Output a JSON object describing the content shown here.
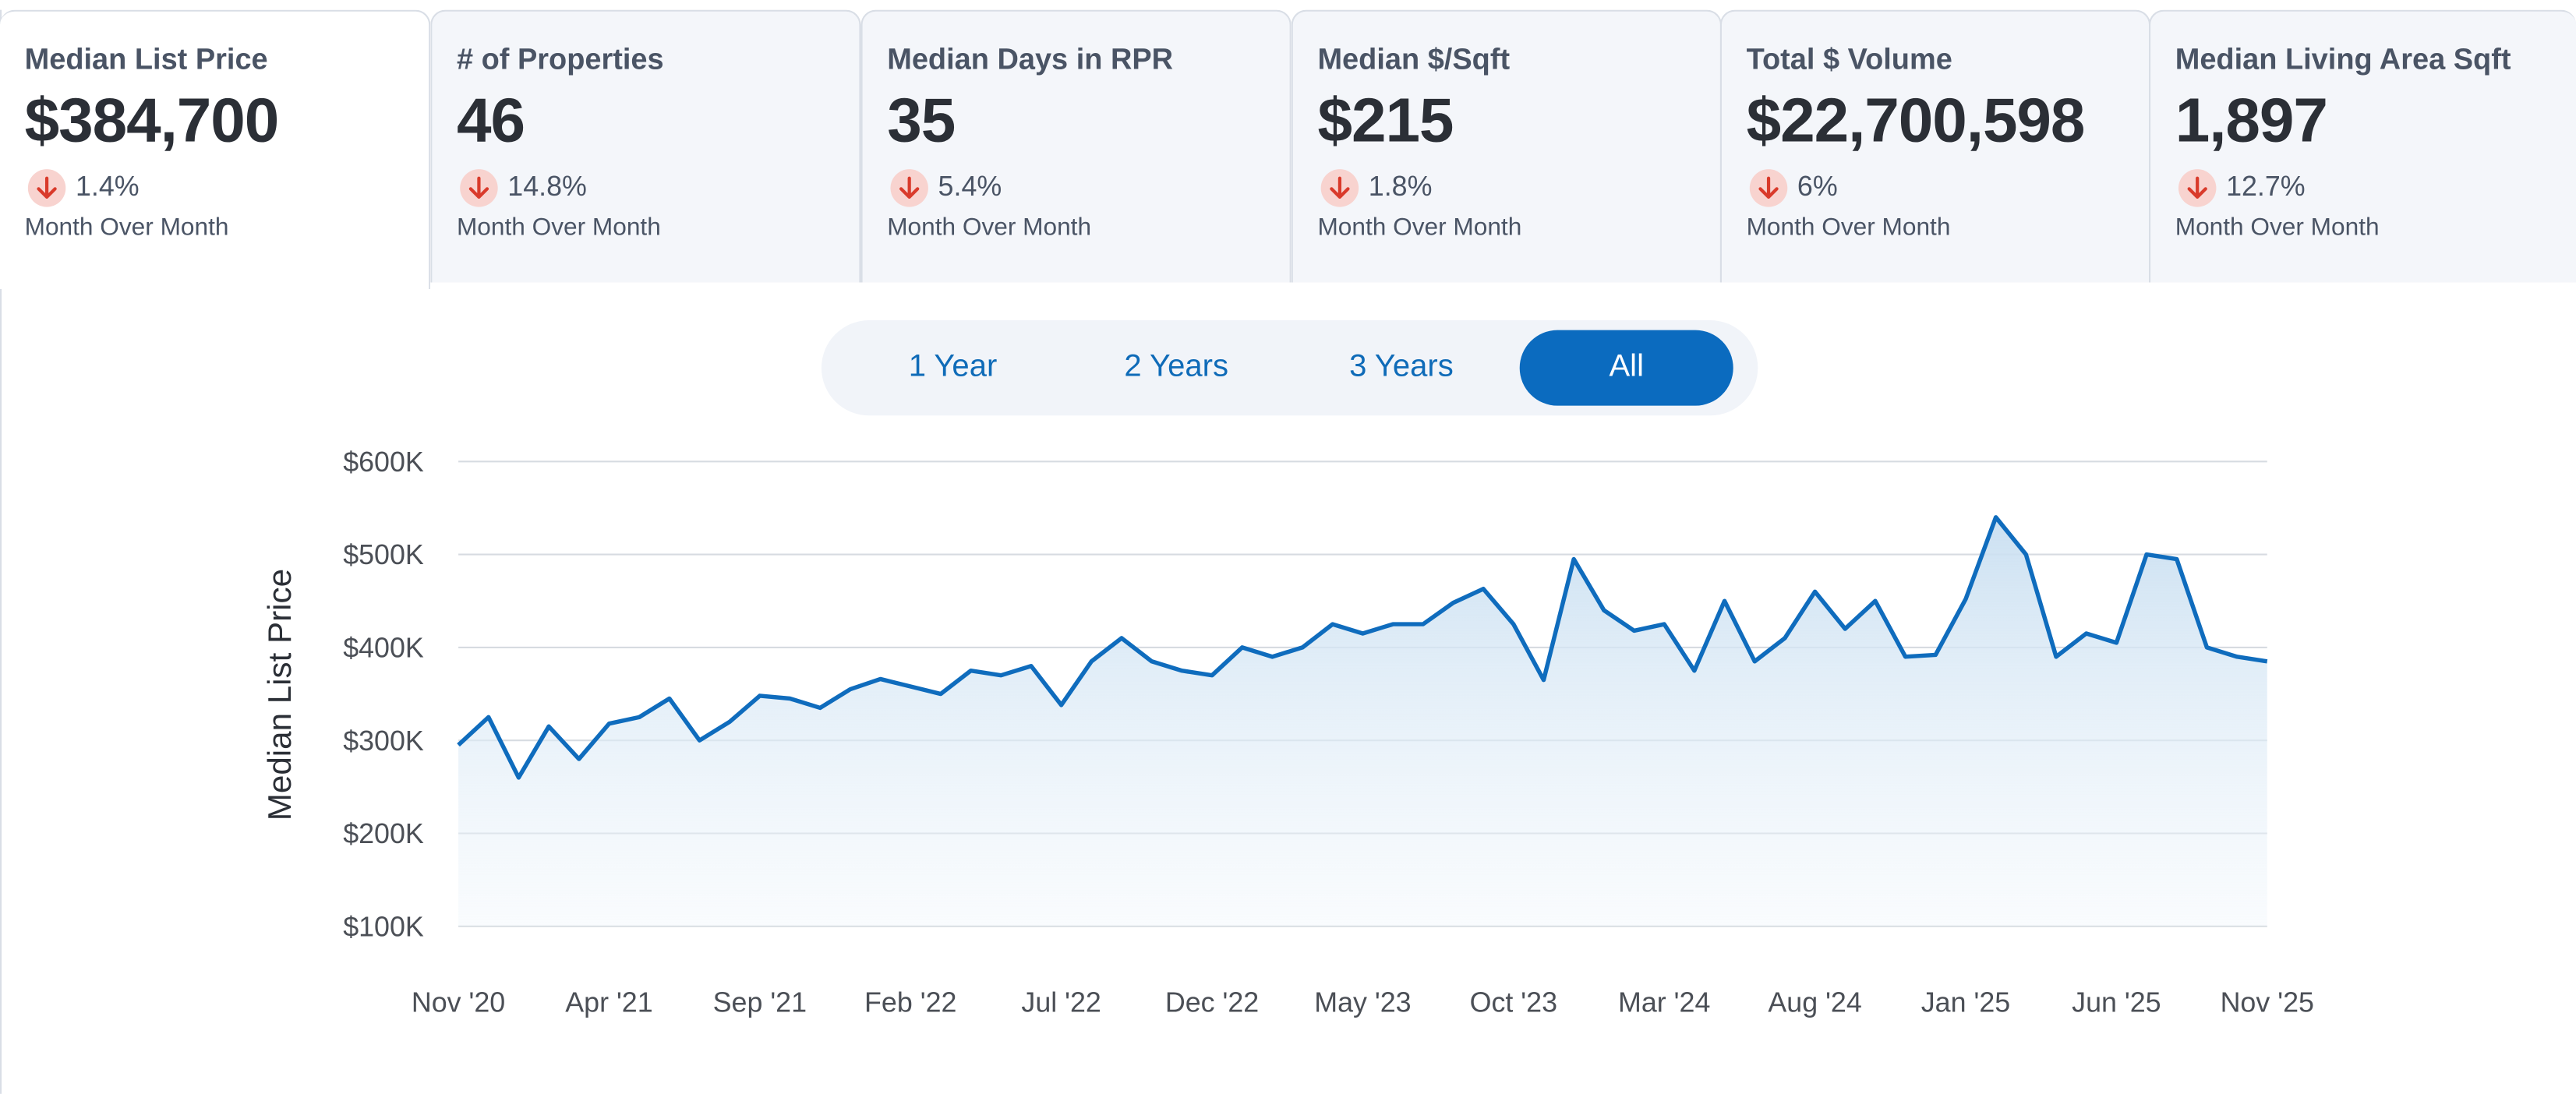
{
  "kpis": [
    {
      "title": "Median List Price",
      "value": "$384,700",
      "change": "1.4%",
      "direction": "down",
      "period": "Month Over Month"
    },
    {
      "title": "# of Properties",
      "value": "46",
      "change": "14.8%",
      "direction": "down",
      "period": "Month Over Month"
    },
    {
      "title": "Median Days in RPR",
      "value": "35",
      "change": "5.4%",
      "direction": "down",
      "period": "Month Over Month"
    },
    {
      "title": "Median $/Sqft",
      "value": "$215",
      "change": "1.8%",
      "direction": "down",
      "period": "Month Over Month"
    },
    {
      "title": "Total $ Volume",
      "value": "$22,700,598",
      "change": "6%",
      "direction": "down",
      "period": "Month Over Month"
    },
    {
      "title": "Median Living Area Sqft",
      "value": "1,897",
      "change": "12.7%",
      "direction": "down",
      "period": "Month Over Month"
    }
  ],
  "range_options": [
    "1 Year",
    "2 Years",
    "3 Years",
    "All"
  ],
  "selected_range": "All",
  "colors": {
    "accent": "#0b6bbf",
    "line": "#0f6cbd",
    "down_badge_bg": "#f8d3cf",
    "down_arrow": "#d93a2b",
    "grid": "#d7dbe1"
  },
  "icons": {
    "change": "arrow-down-icon"
  },
  "chart_data": {
    "type": "area",
    "title": "",
    "xlabel": "",
    "ylabel": "Median List Price",
    "ylim": [
      100000,
      600000
    ],
    "yticks": [
      100000,
      200000,
      300000,
      400000,
      500000,
      600000
    ],
    "ytick_labels": [
      "$100K",
      "$200K",
      "$300K",
      "$400K",
      "$500K",
      "$600K"
    ],
    "xtick_labels": [
      "Nov '20",
      "Apr '21",
      "Sep '21",
      "Feb '22",
      "Jul '22",
      "Dec '22",
      "May '23",
      "Oct '23",
      "Mar '24",
      "Aug '24",
      "Jan '25",
      "Jun '25",
      "Nov '25"
    ],
    "grid": true,
    "series": [
      {
        "x": [
          "2020-11",
          "2020-12",
          "2021-01",
          "2021-02",
          "2021-03",
          "2021-04",
          "2021-05",
          "2021-06",
          "2021-07",
          "2021-08",
          "2021-09",
          "2021-10",
          "2021-11",
          "2021-12",
          "2022-01",
          "2022-02",
          "2022-03",
          "2022-04",
          "2022-05",
          "2022-06",
          "2022-07",
          "2022-08",
          "2022-09",
          "2022-10",
          "2022-11",
          "2022-12",
          "2023-01",
          "2023-02",
          "2023-03",
          "2023-04",
          "2023-05",
          "2023-06",
          "2023-07",
          "2023-08",
          "2023-09",
          "2023-10",
          "2023-11",
          "2023-12",
          "2024-01",
          "2024-02",
          "2024-03",
          "2024-04",
          "2024-05",
          "2024-06",
          "2024-07",
          "2024-08",
          "2024-09",
          "2024-10",
          "2024-11",
          "2024-12",
          "2025-01",
          "2025-02",
          "2025-03",
          "2025-04",
          "2025-05",
          "2025-06",
          "2025-07",
          "2025-08",
          "2025-09",
          "2025-10",
          "2025-11"
        ],
        "values": [
          295000,
          325000,
          260000,
          315000,
          280000,
          318000,
          325000,
          345000,
          300000,
          320000,
          348000,
          345000,
          335000,
          355000,
          366000,
          358000,
          350000,
          375000,
          370000,
          380000,
          338000,
          385000,
          410000,
          385000,
          375000,
          370000,
          400000,
          390000,
          400000,
          425000,
          415000,
          425000,
          425000,
          448000,
          463000,
          425000,
          365000,
          495000,
          440000,
          418000,
          425000,
          375000,
          450000,
          385000,
          410000,
          460000,
          420000,
          450000,
          390000,
          392000,
          452000,
          540000,
          500000,
          390000,
          415000,
          405000,
          500000,
          495000,
          400000,
          390000,
          385000
        ]
      }
    ]
  }
}
